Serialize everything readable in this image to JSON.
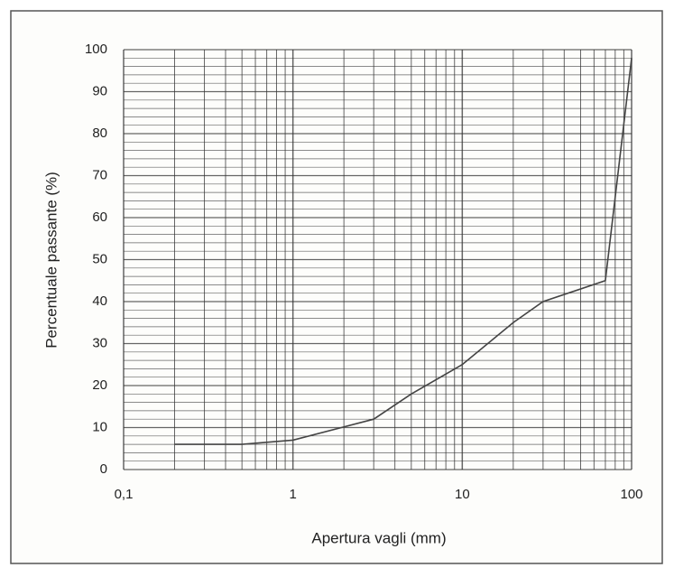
{
  "chart_data": {
    "type": "line",
    "xlabel": "Apertura vagli (mm)",
    "ylabel": "Percentuale passante (%)",
    "x": [
      0.2,
      0.5,
      1,
      3,
      5,
      10,
      20,
      30,
      70,
      100
    ],
    "series": [
      {
        "color": "#444444",
        "values": [
          6,
          6,
          7,
          12,
          18,
          25,
          35,
          40,
          45,
          98
        ]
      }
    ],
    "xscale": "log",
    "xlim": [
      0.1,
      100
    ],
    "xticks": [
      {
        "value": 0.1,
        "label": "0,1"
      },
      1,
      10,
      100
    ],
    "ylim": [
      0,
      100
    ],
    "yticks": [
      0,
      10,
      20,
      30,
      40,
      50,
      60,
      70,
      80,
      90,
      100
    ],
    "grid": true,
    "minor_grid": true
  }
}
